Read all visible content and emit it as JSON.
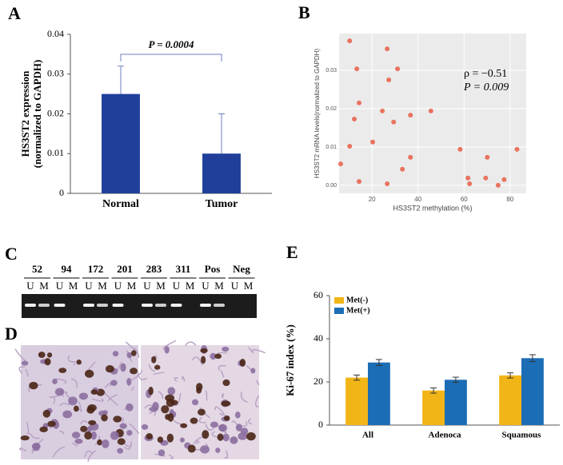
{
  "panel_letters": [
    "A",
    "B",
    "C",
    "D",
    "E"
  ],
  "chart_data": [
    {
      "type": "bar",
      "categories": [
        "Normal",
        "Tumor"
      ],
      "values": [
        0.025,
        0.01
      ],
      "errors": [
        0.007,
        0.01
      ],
      "error_bars": "upper",
      "color": "#1f3f9a",
      "ylabel": [
        "HS3ST2 expression",
        "(normalized to GAPDH)"
      ],
      "ylim": [
        0,
        0.04
      ],
      "yticks": [
        0,
        0.01,
        0.02,
        0.03,
        0.04
      ],
      "annotation": "P = 0.0004"
    },
    {
      "type": "scatter",
      "color": "#e8735f",
      "x": [
        6.4,
        10.3,
        10.3,
        12.3,
        13.4,
        14.4,
        14.4,
        20.3,
        24.5,
        26.6,
        27.3,
        29.4,
        31.1,
        33.2,
        26.6,
        36.7,
        36.7,
        45.6,
        58.3,
        61.7,
        62.4,
        70.1,
        69.4,
        74.8,
        77.4,
        83.0
      ],
      "values": [
        0.0056,
        0.0377,
        0.0102,
        0.0173,
        0.0304,
        0.0215,
        0.001,
        0.0113,
        0.0194,
        0.0356,
        0.0275,
        0.0165,
        0.0304,
        0.0042,
        0.0004,
        0.0183,
        0.0073,
        0.0194,
        0.0094,
        0.0019,
        0.0004,
        0.0073,
        0.0019,
        0.0,
        0.0015,
        0.0094
      ],
      "xlabel": "HS3ST2 methylation (%)",
      "ylabel": "HS3ST2 mRNA levels(normalized to GAPDH)",
      "xlim": [
        5.7,
        87
      ],
      "xticks": [
        20,
        40,
        60,
        80
      ],
      "ylim": [
        -0.0021,
        0.0396
      ],
      "yticks": [
        {
          "value": 0,
          "label": "0.00"
        },
        0.01,
        0.02,
        0.03
      ],
      "grid": true,
      "annotation": [
        "ρ = −0.51",
        "P = 0.009"
      ]
    },
    {
      "type": "bar",
      "categories": [
        "All",
        "Adenoca",
        "Squamous"
      ],
      "error_bars": "both",
      "series": [
        {
          "name": "Met(-)",
          "color": "#f2b517",
          "values": [
            22,
            16,
            23
          ],
          "errors": [
            1.2,
            1.2,
            1.2
          ]
        },
        {
          "name": "Met(+)",
          "color": "#1b6db5",
          "values": [
            29,
            21,
            31
          ],
          "errors": [
            1.4,
            1.2,
            1.6
          ]
        }
      ],
      "ylabel": "Ki-67 index (%)",
      "ylim": [
        0,
        60
      ],
      "yticks": [
        0,
        20,
        40,
        60
      ],
      "legend": "upper left"
    }
  ],
  "gel": {
    "samples": [
      "52",
      "94",
      "172",
      "201",
      "283",
      "311",
      "Pos",
      "Neg"
    ],
    "lane_labels": [
      "U",
      "M"
    ]
  }
}
